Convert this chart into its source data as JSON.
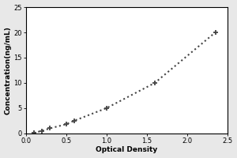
{
  "x_data": [
    0.1,
    0.2,
    0.3,
    0.5,
    0.6,
    1.0,
    1.6,
    2.35
  ],
  "y_data": [
    0.1,
    0.5,
    1.0,
    1.8,
    2.5,
    5.0,
    10.0,
    20.0
  ],
  "xlabel": "Optical Density",
  "ylabel": "Concentration(ng/mL)",
  "xlim": [
    0,
    2.5
  ],
  "ylim": [
    0,
    25
  ],
  "xticks": [
    0,
    0.5,
    1,
    1.5,
    2,
    2.5
  ],
  "yticks": [
    0,
    5,
    10,
    15,
    20,
    25
  ],
  "line_color": "#444444",
  "marker": "+",
  "marker_size": 5,
  "linestyle": "dotted",
  "linewidth": 1.5,
  "bg_color": "#ffffff",
  "outer_bg": "#e8e8e8",
  "label_fontsize": 6.5,
  "tick_fontsize": 6
}
